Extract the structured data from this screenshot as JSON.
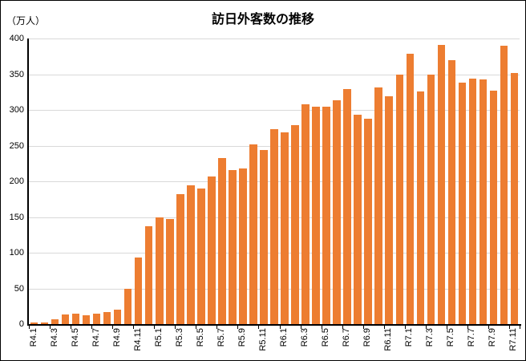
{
  "chart_data": {
    "type": "bar",
    "title": "訪日外客数の推移",
    "ylabel": "（万人）",
    "xlabel": "",
    "ylim": [
      0,
      400
    ],
    "ytick_step": 50,
    "yticks": [
      0,
      50,
      100,
      150,
      200,
      250,
      300,
      350,
      400
    ],
    "grid": true,
    "legend": "none",
    "bar_color": "#ED7D31",
    "gridline_color": "#D9D9D9",
    "axis_color": "#000000",
    "categories": [
      "R4.1",
      "R4.2",
      "R4.3",
      "R4.4",
      "R4.5",
      "R4.6",
      "R4.7",
      "R4.8",
      "R4.9",
      "R4.10",
      "R4.11",
      "R4.12",
      "R5.1",
      "R5.2",
      "R5.3",
      "R5.4",
      "R5.5",
      "R5.6",
      "R5.7",
      "R5.8",
      "R5.9",
      "R5.10",
      "R5.11",
      "R5.12",
      "R6.1",
      "R6.2",
      "R6.3",
      "R6.4",
      "R6.5",
      "R6.6",
      "R6.7",
      "R6.8",
      "R6.9",
      "R6.10",
      "R6.11",
      "R6.12",
      "R7.1",
      "R7.2",
      "R7.3",
      "R7.4",
      "R7.5",
      "R7.6",
      "R7.7",
      "R7.8",
      "R7.9",
      "R7.10",
      "R7.11"
    ],
    "values": [
      1.8,
      1.7,
      6.6,
      14.0,
      14.7,
      12.0,
      14.5,
      17.0,
      20.7,
      49.9,
      93.5,
      137.0,
      149.7,
      147.5,
      181.8,
      194.9,
      189.8,
      207.3,
      232.1,
      215.7,
      218.4,
      251.7,
      244.1,
      273.4,
      268.8,
      278.8,
      308.2,
      304.3,
      304.0,
      313.6,
      329.3,
      293.3,
      287.2,
      331.2,
      318.7,
      349.0,
      378.1,
      325.9,
      349.8,
      390.9,
      369.3,
      337.8,
      343.7,
      342.8,
      326.7,
      389.6,
      352.2
    ],
    "xtick_label_interval": 2,
    "xtick_labels": [
      "R4.1",
      "R4.3",
      "R4.5",
      "R4.7",
      "R4.9",
      "R4.11",
      "R5.1",
      "R5.3",
      "R5.5",
      "R5.7",
      "R5.9",
      "R5.11",
      "R6.1",
      "R6.3",
      "R6.5",
      "R6.7",
      "R6.9",
      "R6.11",
      "R7.1",
      "R7.3",
      "R7.5",
      "R7.7",
      "R7.9",
      "R7.11"
    ]
  }
}
